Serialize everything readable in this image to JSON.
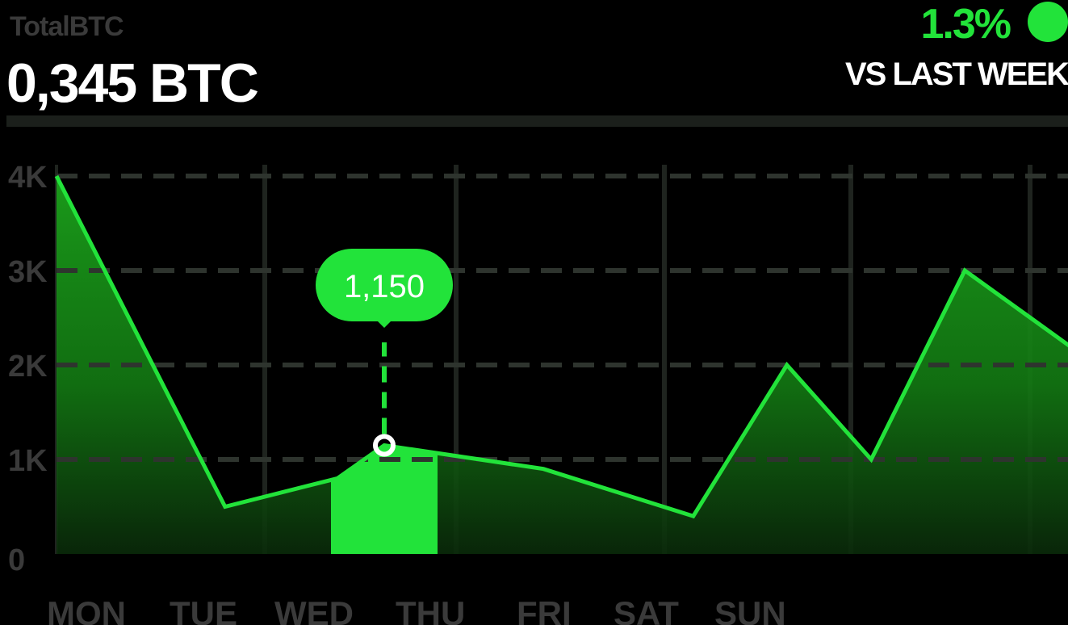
{
  "header": {
    "label": "TotalBTC",
    "amount": "0,345 BTC",
    "change": "1.3%",
    "comparison": "VS LAST WEEK"
  },
  "colors": {
    "accent": "#22e33a",
    "background": "#000000",
    "grid": "#2e342e",
    "axis_text": "#3a3a3a"
  },
  "chart_data": {
    "type": "area",
    "categories": [
      "MON",
      "TUE",
      "WED",
      "THU",
      "FRI",
      "SAT",
      "SUN"
    ],
    "x": [
      0,
      0.9,
      1.5,
      1.75,
      2.6,
      3.4,
      3.9,
      4.35,
      4.85,
      5.55
    ],
    "values": [
      4000,
      500,
      800,
      1150,
      900,
      400,
      2000,
      1000,
      3000,
      2000
    ],
    "ylim": [
      0,
      4000
    ],
    "y_ticks": [
      {
        "value": 0,
        "label": "0"
      },
      {
        "value": 1000,
        "label": "1K"
      },
      {
        "value": 2000,
        "label": "2K"
      },
      {
        "value": 3000,
        "label": "3K"
      },
      {
        "value": 4000,
        "label": "4K"
      }
    ],
    "highlight": {
      "category": "WED",
      "value": 1150,
      "label": "1,150",
      "x": 1.75
    },
    "grid": true,
    "legend": "none"
  }
}
